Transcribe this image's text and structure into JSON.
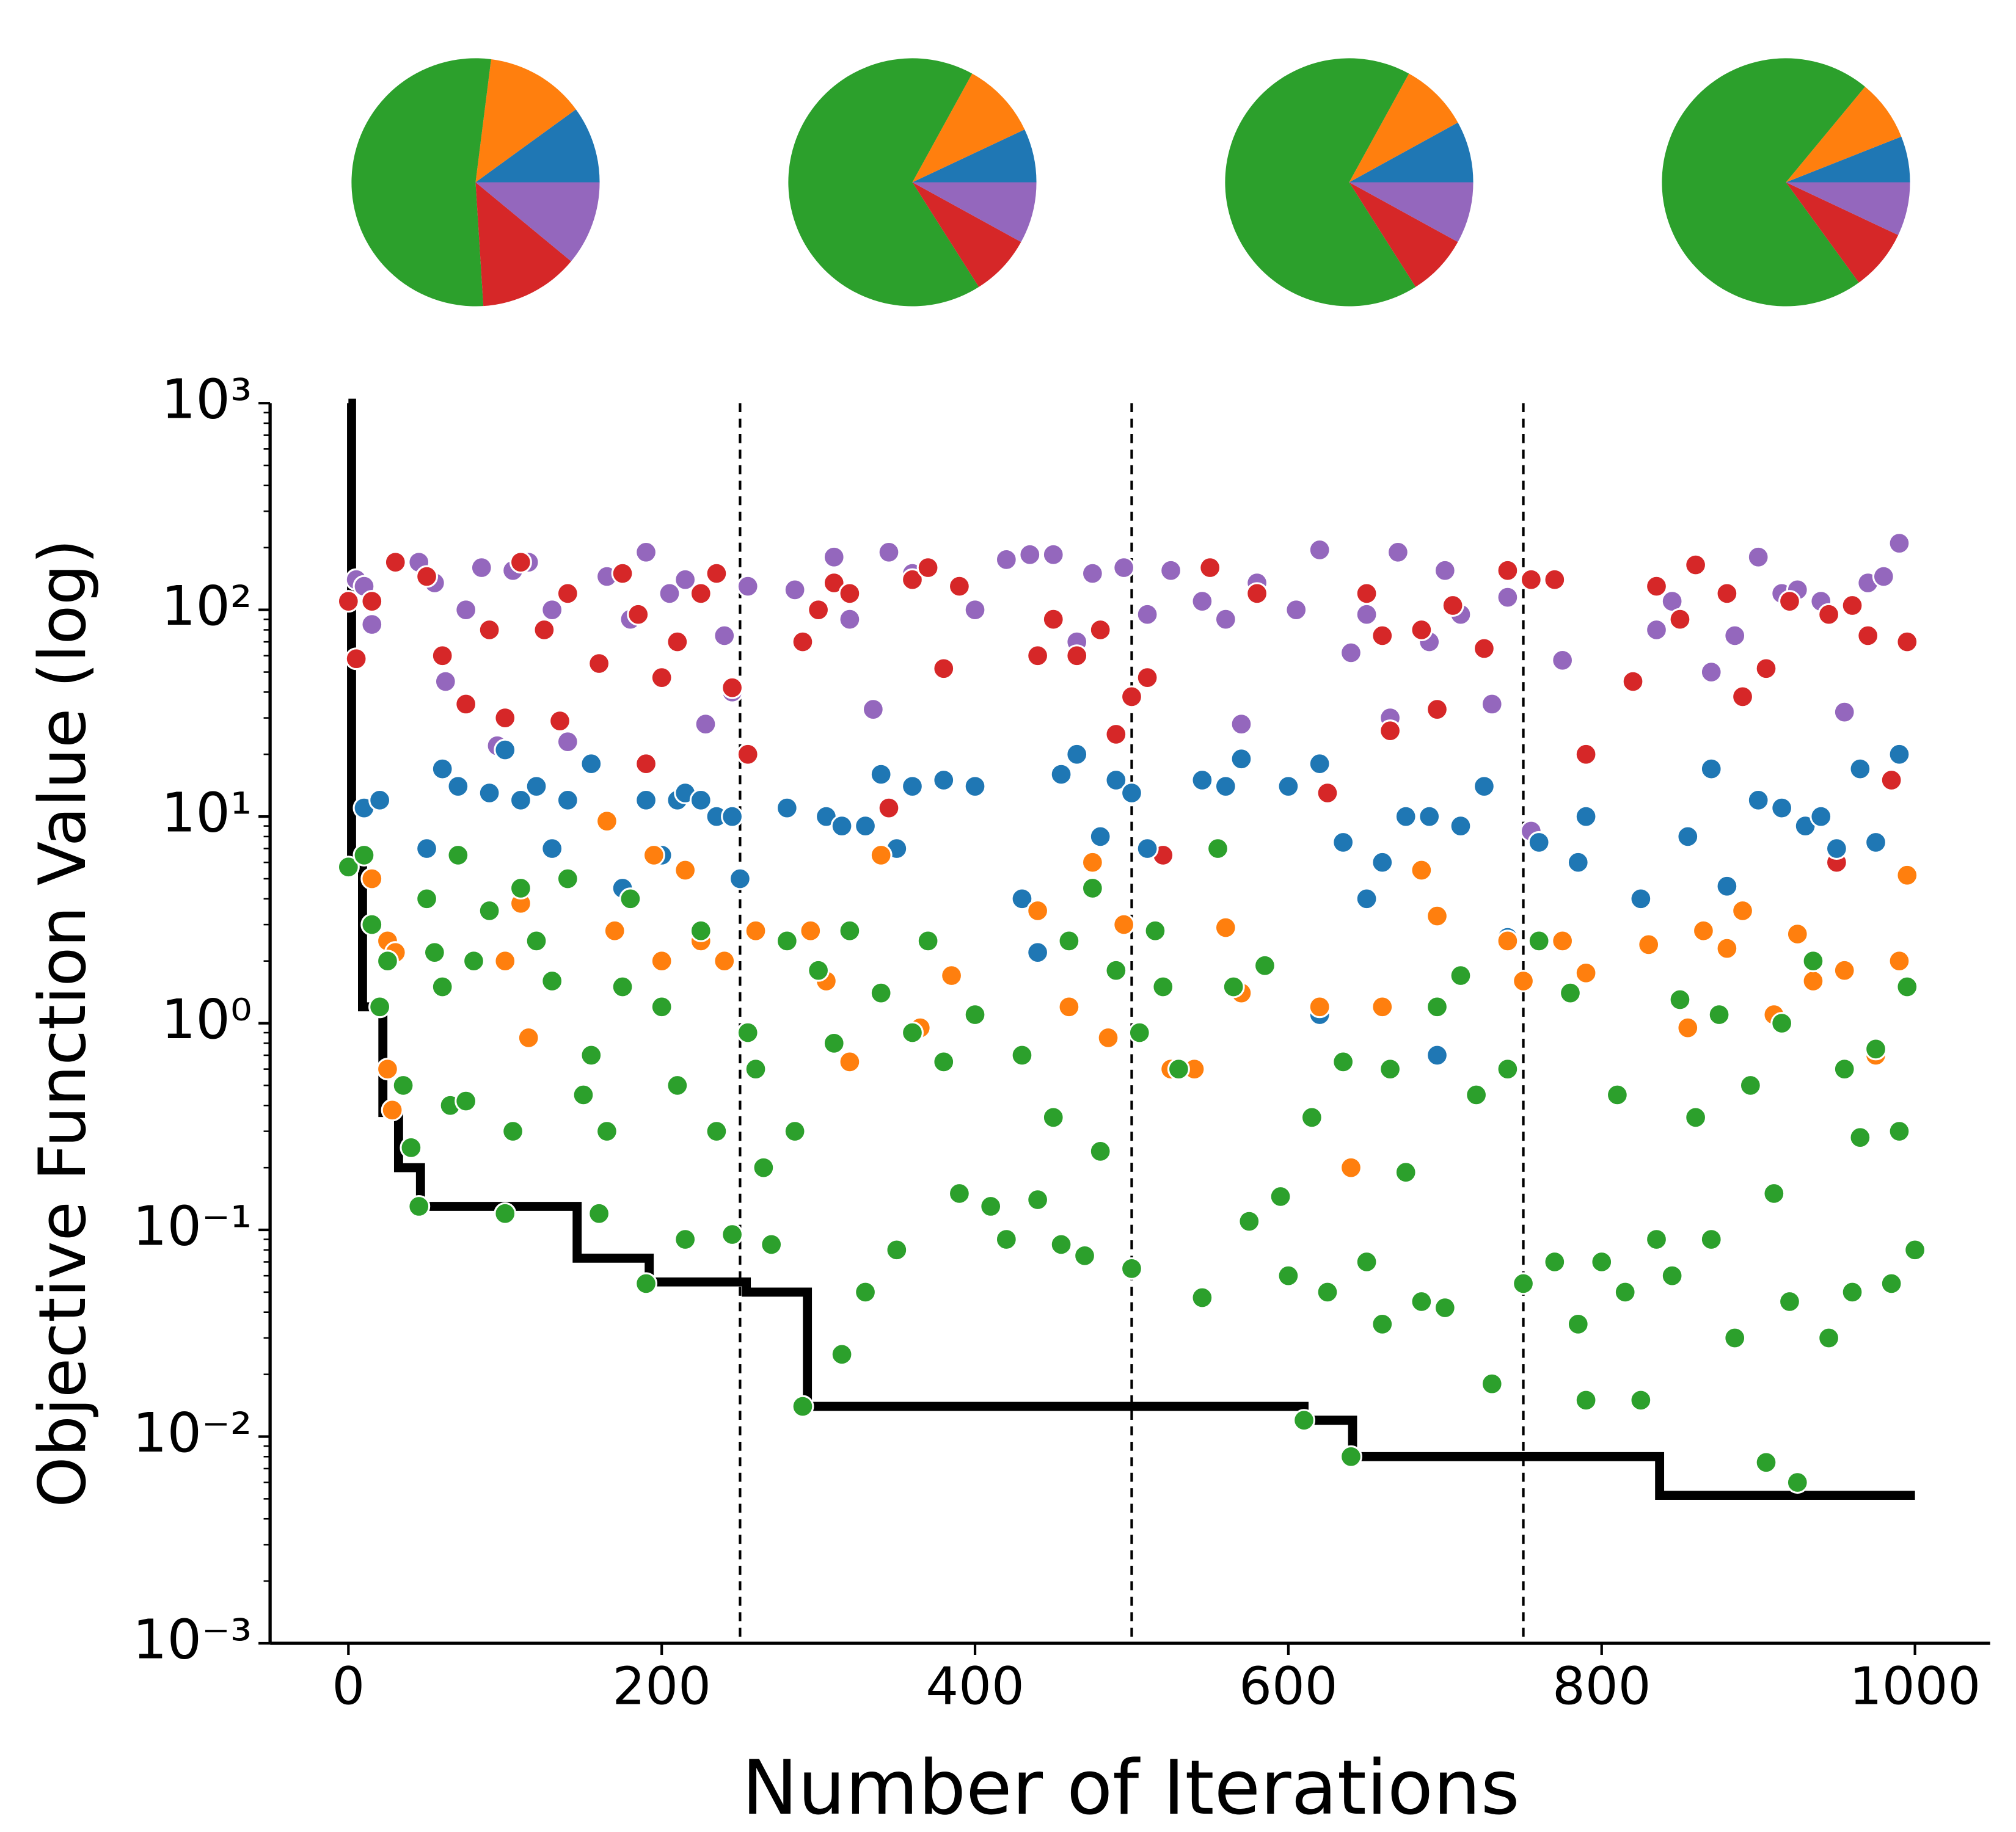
{
  "chart_data": [
    {
      "type": "pie",
      "values": [
        10,
        13,
        53,
        13,
        11
      ],
      "colors": [
        "#1f77b4",
        "#ff7f0e",
        "#2ca02c",
        "#d62728",
        "#9467bd"
      ]
    },
    {
      "type": "pie",
      "values": [
        7,
        10,
        67,
        8,
        8
      ],
      "colors": [
        "#1f77b4",
        "#ff7f0e",
        "#2ca02c",
        "#d62728",
        "#9467bd"
      ]
    },
    {
      "type": "pie",
      "values": [
        8,
        9,
        67,
        8,
        8
      ],
      "colors": [
        "#1f77b4",
        "#ff7f0e",
        "#2ca02c",
        "#d62728",
        "#9467bd"
      ]
    },
    {
      "type": "pie",
      "values": [
        6,
        8,
        71,
        8,
        7
      ],
      "colors": [
        "#1f77b4",
        "#ff7f0e",
        "#2ca02c",
        "#d62728",
        "#9467bd"
      ]
    },
    {
      "type": "scatter",
      "x_label": "Number of Iterations",
      "y_label": "Objective Function Value (log)",
      "xlim": [
        -50,
        1048
      ],
      "ylim": [
        0.001,
        1000
      ],
      "log_y": true,
      "xticks": [
        0,
        200,
        400,
        600,
        800,
        1000
      ],
      "yticks": [
        {
          "value": 0.001,
          "label": "10⁻³"
        },
        {
          "value": 0.01,
          "label": "10⁻²"
        },
        {
          "value": 0.1,
          "label": "10⁻¹"
        },
        {
          "value": 1,
          "label": "10⁰"
        },
        {
          "value": 10,
          "label": "10¹"
        },
        {
          "value": 100,
          "label": "10²"
        },
        {
          "value": 1000,
          "label": "10³"
        }
      ],
      "vlines": [
        250,
        500,
        750
      ],
      "step_line": {
        "color": "#000000",
        "x": [
          0,
          2,
          9,
          22,
          32,
          46,
          146,
          192,
          254,
          293,
          610,
          641,
          837,
          1000
        ],
        "values": [
          1000,
          5.7,
          1.2,
          0.37,
          0.2,
          0.13,
          0.073,
          0.056,
          0.05,
          0.014,
          0.012,
          0.008,
          0.0052,
          0.0052
        ]
      },
      "series": [
        {
          "color": "#9467bd",
          "x": [
            5,
            10,
            15,
            45,
            55,
            62,
            75,
            85,
            95,
            105,
            115,
            130,
            140,
            165,
            180,
            190,
            205,
            215,
            228,
            240,
            245,
            255,
            285,
            310,
            320,
            335,
            345,
            360,
            380,
            400,
            420,
            435,
            450,
            465,
            475,
            495,
            510,
            525,
            545,
            560,
            570,
            580,
            605,
            620,
            640,
            650,
            665,
            670,
            690,
            700,
            710,
            730,
            740,
            755,
            775,
            835,
            845,
            870,
            885,
            900,
            915,
            925,
            940,
            955,
            970,
            980,
            990
          ],
          "values": [
            140,
            130,
            85,
            170,
            135,
            45,
            100,
            160,
            22,
            155,
            170,
            100,
            23,
            145,
            90,
            190,
            120,
            140,
            28,
            75,
            40,
            130,
            125,
            180,
            90,
            33,
            190,
            150,
            15,
            100,
            175,
            185,
            185,
            70,
            150,
            160,
            95,
            155,
            110,
            90,
            28,
            135,
            100,
            195,
            62,
            95,
            30,
            190,
            70,
            155,
            95,
            35,
            115,
            8.5,
            57,
            80,
            110,
            50,
            75,
            180,
            120,
            125,
            110,
            32,
            135,
            145,
            210
          ]
        },
        {
          "color": "#d62728",
          "x": [
            0,
            5,
            15,
            30,
            50,
            60,
            75,
            90,
            100,
            110,
            125,
            135,
            140,
            160,
            175,
            185,
            190,
            200,
            210,
            225,
            235,
            245,
            255,
            290,
            300,
            310,
            320,
            345,
            360,
            370,
            380,
            390,
            440,
            450,
            465,
            480,
            490,
            500,
            510,
            520,
            550,
            580,
            625,
            650,
            660,
            665,
            685,
            695,
            705,
            725,
            740,
            755,
            770,
            790,
            820,
            835,
            850,
            860,
            880,
            890,
            905,
            920,
            945,
            950,
            960,
            970,
            985,
            995
          ],
          "values": [
            110,
            58,
            110,
            170,
            145,
            60,
            35,
            80,
            30,
            170,
            80,
            29,
            120,
            55,
            150,
            95,
            18,
            47,
            70,
            120,
            150,
            42,
            20,
            70,
            100,
            135,
            120,
            11,
            140,
            160,
            52,
            130,
            60,
            90,
            60,
            80,
            25,
            38,
            47,
            6.5,
            160,
            120,
            13,
            120,
            75,
            26,
            80,
            33,
            105,
            65,
            155,
            140,
            140,
            20,
            45,
            130,
            90,
            165,
            120,
            38,
            52,
            110,
            95,
            6,
            105,
            75,
            15,
            70
          ]
        },
        {
          "color": "#1f77b4",
          "x": [
            10,
            20,
            50,
            60,
            70,
            90,
            100,
            110,
            120,
            130,
            140,
            155,
            175,
            190,
            200,
            210,
            215,
            225,
            235,
            245,
            250,
            280,
            305,
            315,
            330,
            340,
            350,
            360,
            380,
            400,
            430,
            440,
            455,
            465,
            480,
            490,
            500,
            510,
            545,
            560,
            570,
            600,
            620,
            635,
            650,
            660,
            675,
            690,
            710,
            725,
            740,
            760,
            785,
            790,
            825,
            855,
            870,
            880,
            900,
            915,
            930,
            940,
            950,
            965,
            975,
            990,
            620,
            695
          ],
          "values": [
            11,
            12,
            7,
            17,
            14,
            13,
            21,
            12,
            14,
            7,
            12,
            18,
            4.5,
            12,
            6.5,
            12,
            13,
            12,
            10,
            10,
            5,
            11,
            10,
            9,
            9,
            16,
            7,
            14,
            15,
            14,
            4,
            2.2,
            16,
            20,
            8,
            15,
            13,
            7,
            15,
            14,
            19,
            14,
            18,
            7.5,
            4,
            6,
            10,
            10,
            9,
            14,
            2.6,
            7.5,
            6,
            10,
            4,
            8,
            17,
            4.6,
            12,
            11,
            9,
            10,
            7,
            17,
            7.5,
            20,
            1.1,
            0.7
          ]
        },
        {
          "color": "#ff7f0e",
          "x": [
            15,
            25,
            20,
            30,
            25,
            28,
            100,
            110,
            115,
            165,
            170,
            195,
            200,
            215,
            225,
            240,
            260,
            295,
            305,
            320,
            340,
            365,
            385,
            440,
            460,
            475,
            485,
            495,
            525,
            540,
            560,
            570,
            620,
            640,
            660,
            685,
            695,
            740,
            750,
            775,
            790,
            830,
            855,
            865,
            880,
            890,
            910,
            925,
            935,
            955,
            975,
            990,
            995
          ],
          "values": [
            5,
            2.5,
            1.2,
            2.2,
            0.6,
            0.38,
            2,
            3.8,
            0.85,
            9.5,
            2.8,
            6.5,
            2,
            5.5,
            2.5,
            2,
            2.8,
            2.8,
            1.6,
            0.65,
            6.5,
            0.95,
            1.7,
            3.5,
            1.2,
            6,
            0.85,
            3,
            0.6,
            0.6,
            2.9,
            1.4,
            1.2,
            0.2,
            1.2,
            5.5,
            3.3,
            2.5,
            1.6,
            2.5,
            1.75,
            2.4,
            0.95,
            2.8,
            2.3,
            3.5,
            1.1,
            2.7,
            1.6,
            1.8,
            0.7,
            2,
            5.2
          ]
        },
        {
          "color": "#2ca02c",
          "x": [
            0,
            10,
            15,
            20,
            25,
            35,
            40,
            45,
            50,
            55,
            60,
            65,
            70,
            75,
            80,
            90,
            100,
            105,
            110,
            120,
            130,
            140,
            150,
            155,
            160,
            165,
            175,
            180,
            190,
            200,
            210,
            215,
            225,
            235,
            245,
            255,
            260,
            265,
            270,
            280,
            285,
            290,
            300,
            310,
            315,
            320,
            330,
            340,
            350,
            360,
            370,
            380,
            390,
            400,
            410,
            420,
            430,
            440,
            450,
            455,
            460,
            470,
            475,
            480,
            490,
            500,
            505,
            515,
            520,
            530,
            545,
            555,
            565,
            575,
            585,
            595,
            600,
            610,
            615,
            625,
            635,
            640,
            650,
            660,
            665,
            675,
            685,
            695,
            700,
            710,
            720,
            730,
            740,
            750,
            760,
            770,
            780,
            785,
            790,
            800,
            810,
            815,
            825,
            835,
            845,
            850,
            860,
            870,
            875,
            885,
            895,
            905,
            910,
            915,
            920,
            925,
            935,
            945,
            955,
            960,
            965,
            975,
            985,
            990,
            995,
            1000
          ],
          "values": [
            5.7,
            6.5,
            3,
            1.2,
            2,
            0.5,
            0.25,
            0.13,
            4,
            2.2,
            1.5,
            0.4,
            6.5,
            0.42,
            2,
            3.5,
            0.12,
            0.3,
            4.5,
            2.5,
            1.6,
            5,
            0.45,
            0.7,
            0.12,
            0.3,
            1.5,
            4,
            0.055,
            1.2,
            0.5,
            0.09,
            2.8,
            0.3,
            0.095,
            0.9,
            0.6,
            0.2,
            0.085,
            2.5,
            0.3,
            0.014,
            1.8,
            0.8,
            0.025,
            2.8,
            0.05,
            1.4,
            0.08,
            0.9,
            2.5,
            0.65,
            0.15,
            1.1,
            0.13,
            0.09,
            0.7,
            0.14,
            0.35,
            0.085,
            2.5,
            0.075,
            4.5,
            0.24,
            1.8,
            0.065,
            0.9,
            2.8,
            1.5,
            0.6,
            0.047,
            7,
            1.5,
            0.11,
            1.9,
            0.145,
            0.06,
            0.012,
            0.35,
            0.05,
            0.65,
            0.008,
            0.07,
            0.035,
            0.6,
            0.19,
            0.045,
            1.2,
            0.042,
            1.7,
            0.45,
            0.018,
            0.6,
            0.055,
            2.5,
            0.07,
            1.4,
            0.035,
            0.015,
            0.07,
            0.45,
            0.05,
            0.015,
            0.09,
            0.06,
            1.3,
            0.35,
            0.09,
            1.1,
            0.03,
            0.5,
            0.0075,
            0.15,
            1,
            0.045,
            0.006,
            2,
            0.03,
            0.6,
            0.05,
            0.28,
            0.75,
            0.055,
            0.3,
            1.5,
            0.08
          ]
        }
      ]
    }
  ]
}
